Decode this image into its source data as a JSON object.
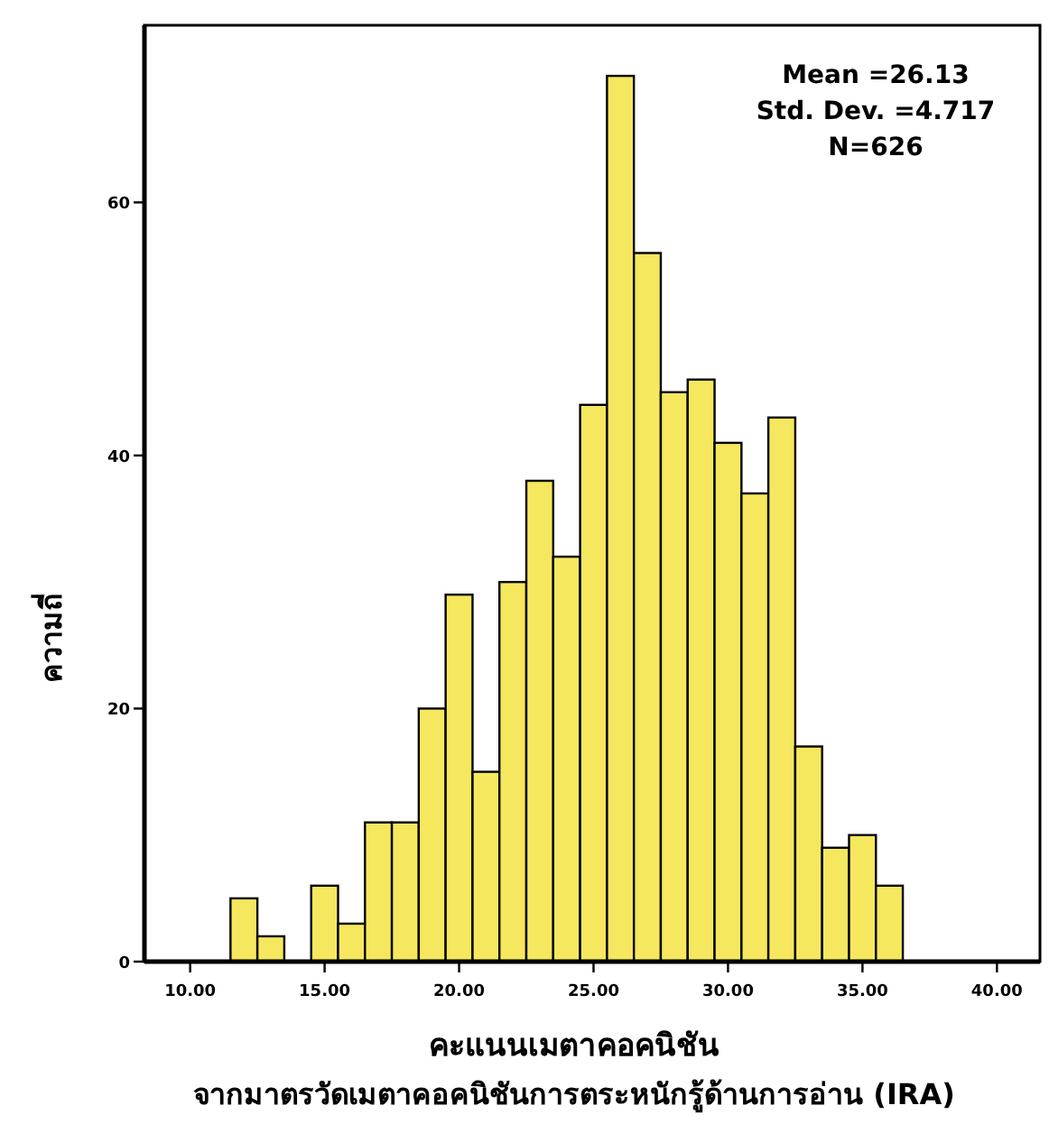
{
  "chart_data": {
    "type": "histogram",
    "xlabel": "คะแนนเมตาคอคนิชัน\nจากมาตรวัดเมตาคอคนิชันการตระหนักรู้ด้านการอ่าน (IRA)",
    "ylabel": "ความถี่",
    "bins": [
      11.5,
      12.5,
      13.5,
      14.5,
      15.5,
      16.5,
      17.5,
      18.5,
      19.5,
      20.5,
      21.5,
      22.5,
      23.5,
      24.5,
      25.5,
      26.5,
      27.5,
      28.5,
      29.5,
      30.5,
      31.5,
      32.5,
      33.5,
      34.5,
      35.5,
      36.5
    ],
    "values": [
      5,
      2,
      0,
      6,
      3,
      11,
      11,
      20,
      29,
      15,
      30,
      38,
      32,
      44,
      70,
      56,
      45,
      46,
      41,
      37,
      43,
      17,
      9,
      10,
      6
    ],
    "color": "#f5e85f",
    "xlim": [
      8.3,
      41.6
    ],
    "ylim": [
      0,
      74
    ],
    "xticks": [
      {
        "value": 10,
        "label": "10.00"
      },
      {
        "value": 15,
        "label": "15.00"
      },
      {
        "value": 20,
        "label": "20.00"
      },
      {
        "value": 25,
        "label": "25.00"
      },
      {
        "value": 30,
        "label": "30.00"
      },
      {
        "value": 35,
        "label": "35.00"
      },
      {
        "value": 40,
        "label": "40.00"
      }
    ],
    "yticks": [
      0,
      20,
      40,
      60
    ],
    "annotations": [
      "Mean =26.13",
      "Std. Dev. =4.717",
      "N=626"
    ]
  }
}
